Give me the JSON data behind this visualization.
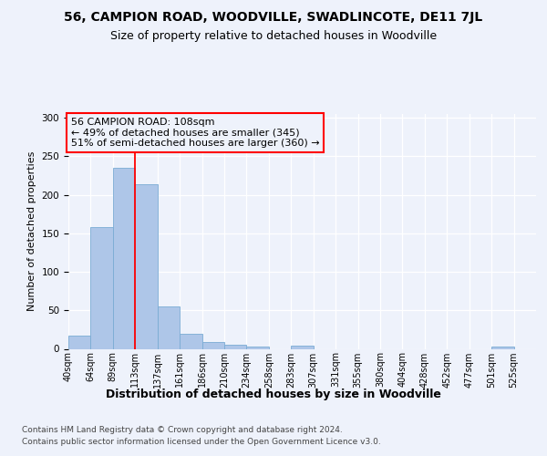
{
  "title": "56, CAMPION ROAD, WOODVILLE, SWADLINCOTE, DE11 7JL",
  "subtitle": "Size of property relative to detached houses in Woodville",
  "xlabel": "Distribution of detached houses by size in Woodville",
  "ylabel": "Number of detached properties",
  "bin_labels": [
    "40sqm",
    "64sqm",
    "89sqm",
    "113sqm",
    "137sqm",
    "161sqm",
    "186sqm",
    "210sqm",
    "234sqm",
    "258sqm",
    "283sqm",
    "307sqm",
    "331sqm",
    "355sqm",
    "380sqm",
    "404sqm",
    "428sqm",
    "452sqm",
    "477sqm",
    "501sqm",
    "525sqm"
  ],
  "counts": [
    17,
    158,
    235,
    214,
    55,
    20,
    9,
    5,
    3,
    0,
    4,
    0,
    0,
    0,
    0,
    0,
    0,
    0,
    0,
    3,
    0
  ],
  "bar_color": "#aec6e8",
  "bar_edge_color": "#7aacd4",
  "red_line_bin": 3,
  "annotation_title": "56 CAMPION ROAD: 108sqm",
  "annotation_line1": "← 49% of detached houses are smaller (345)",
  "annotation_line2": "51% of semi-detached houses are larger (360) →",
  "ylim": [
    0,
    305
  ],
  "yticks": [
    0,
    50,
    100,
    150,
    200,
    250,
    300
  ],
  "footer_line1": "Contains HM Land Registry data © Crown copyright and database right 2024.",
  "footer_line2": "Contains public sector information licensed under the Open Government Licence v3.0.",
  "bg_color": "#eef2fb",
  "grid_color": "#ffffff",
  "title_fontsize": 10,
  "subtitle_fontsize": 9,
  "ylabel_fontsize": 8,
  "xlabel_fontsize": 9,
  "tick_fontsize": 7,
  "annotation_fontsize": 8,
  "footer_fontsize": 6.5
}
